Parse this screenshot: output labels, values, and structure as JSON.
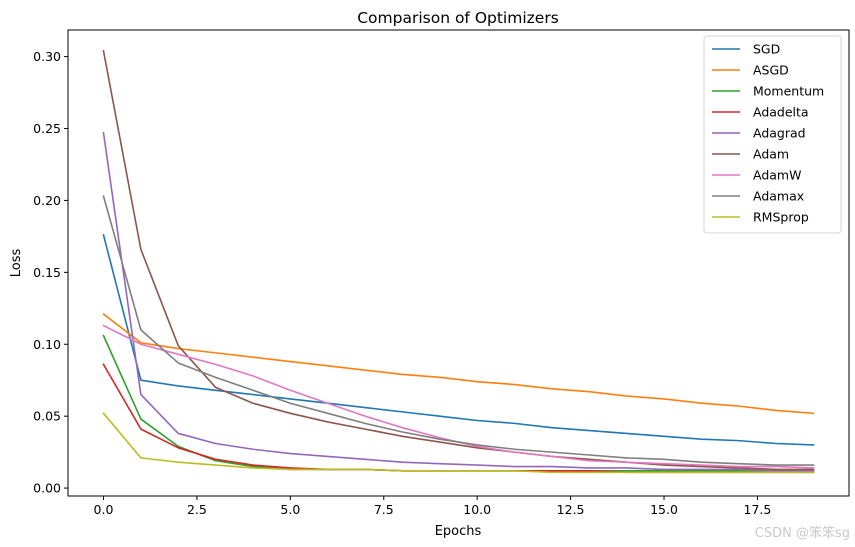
{
  "chart_data": {
    "type": "line",
    "title": "Comparison of Optimizers",
    "xlabel": "Epochs",
    "ylabel": "Loss",
    "xlim": [
      -0.95,
      19.95
    ],
    "ylim": [
      -0.0055,
      0.3185
    ],
    "xticks": [
      0.0,
      2.5,
      5.0,
      7.5,
      10.0,
      12.5,
      15.0,
      17.5
    ],
    "xtick_labels": [
      "0.0",
      "2.5",
      "5.0",
      "7.5",
      "10.0",
      "12.5",
      "15.0",
      "17.5"
    ],
    "yticks": [
      0.0,
      0.05,
      0.1,
      0.15,
      0.2,
      0.25,
      0.3
    ],
    "ytick_labels": [
      "0.00",
      "0.05",
      "0.10",
      "0.15",
      "0.20",
      "0.25",
      "0.30"
    ],
    "legend_position": "top-right",
    "x": [
      0,
      1,
      2,
      3,
      4,
      5,
      6,
      7,
      8,
      9,
      10,
      11,
      12,
      13,
      14,
      15,
      16,
      17,
      18,
      19
    ],
    "series": [
      {
        "name": "SGD",
        "color": "#1f77b4",
        "values": [
          0.176,
          0.075,
          0.071,
          0.068,
          0.065,
          0.062,
          0.059,
          0.056,
          0.053,
          0.05,
          0.047,
          0.045,
          0.042,
          0.04,
          0.038,
          0.036,
          0.034,
          0.033,
          0.031,
          0.03
        ]
      },
      {
        "name": "ASGD",
        "color": "#ff7f0e",
        "values": [
          0.121,
          0.101,
          0.097,
          0.094,
          0.091,
          0.088,
          0.085,
          0.082,
          0.079,
          0.077,
          0.074,
          0.072,
          0.069,
          0.067,
          0.064,
          0.062,
          0.059,
          0.057,
          0.054,
          0.052
        ]
      },
      {
        "name": "Momentum",
        "color": "#2ca02c",
        "values": [
          0.106,
          0.048,
          0.029,
          0.019,
          0.015,
          0.013,
          0.013,
          0.013,
          0.012,
          0.012,
          0.012,
          0.012,
          0.012,
          0.012,
          0.012,
          0.012,
          0.012,
          0.012,
          0.012,
          0.012
        ]
      },
      {
        "name": "Adadelta",
        "color": "#d62728",
        "values": [
          0.086,
          0.041,
          0.028,
          0.02,
          0.016,
          0.014,
          0.013,
          0.013,
          0.012,
          0.012,
          0.012,
          0.012,
          0.012,
          0.012,
          0.011,
          0.011,
          0.011,
          0.011,
          0.011,
          0.011
        ]
      },
      {
        "name": "Adagrad",
        "color": "#9467bd",
        "values": [
          0.247,
          0.065,
          0.038,
          0.031,
          0.027,
          0.024,
          0.022,
          0.02,
          0.018,
          0.017,
          0.016,
          0.015,
          0.015,
          0.014,
          0.014,
          0.013,
          0.013,
          0.013,
          0.012,
          0.012
        ]
      },
      {
        "name": "Adam",
        "color": "#8c564b",
        "values": [
          0.304,
          0.166,
          0.099,
          0.07,
          0.059,
          0.052,
          0.046,
          0.041,
          0.036,
          0.032,
          0.028,
          0.025,
          0.022,
          0.02,
          0.018,
          0.016,
          0.015,
          0.014,
          0.013,
          0.013
        ]
      },
      {
        "name": "AdamW",
        "color": "#e377c2",
        "values": [
          0.113,
          0.1,
          0.093,
          0.086,
          0.078,
          0.068,
          0.059,
          0.05,
          0.042,
          0.035,
          0.029,
          0.025,
          0.022,
          0.019,
          0.018,
          0.017,
          0.016,
          0.015,
          0.015,
          0.014
        ]
      },
      {
        "name": "Adamax",
        "color": "#7f7f7f",
        "values": [
          0.203,
          0.11,
          0.087,
          0.077,
          0.068,
          0.059,
          0.052,
          0.045,
          0.039,
          0.034,
          0.03,
          0.027,
          0.025,
          0.023,
          0.021,
          0.02,
          0.018,
          0.017,
          0.016,
          0.016
        ]
      },
      {
        "name": "RMSprop",
        "color": "#bcbd22",
        "values": [
          0.052,
          0.021,
          0.018,
          0.016,
          0.014,
          0.013,
          0.013,
          0.013,
          0.012,
          0.012,
          0.012,
          0.012,
          0.011,
          0.011,
          0.011,
          0.011,
          0.011,
          0.011,
          0.011,
          0.011
        ]
      }
    ]
  },
  "watermark": "CSDN @笨笨sg"
}
